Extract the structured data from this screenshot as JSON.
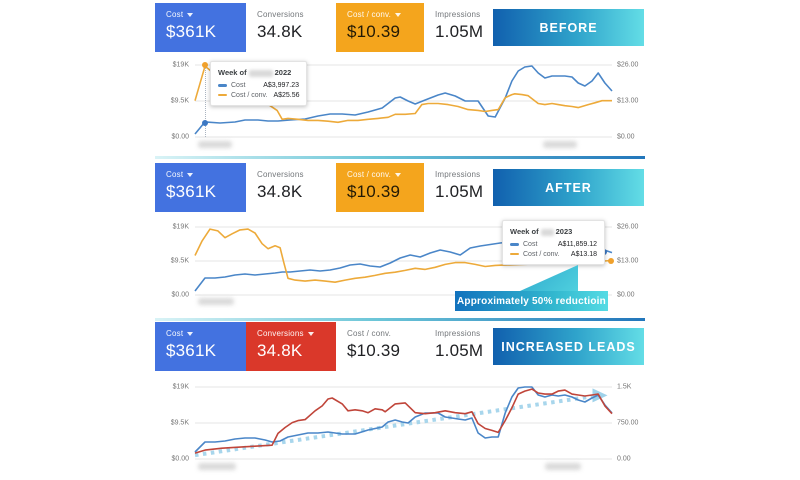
{
  "colors": {
    "cost_card_blue": "#4372e0",
    "cost_conv_card_orange": "#f4a51d",
    "conversions_card_red": "#da382a",
    "badge_gradient": [
      "#1160ae",
      "#63dde6"
    ],
    "cost_line": "#4a86c8",
    "cost_conv_line": "#edaa3a",
    "conversions_line": "#c0453a",
    "trend_line": "#9fd2ea"
  },
  "panels": [
    {
      "badge": "BEFORE",
      "cards": [
        {
          "label": "Cost",
          "caret": true,
          "value": "$361K",
          "variant": "blue"
        },
        {
          "label": "Conversions",
          "caret": false,
          "value": "34.8K",
          "variant": "white"
        },
        {
          "label": "Cost / conv.",
          "caret": true,
          "value": "$10.39",
          "variant": "orange"
        },
        {
          "label": "Impressions",
          "caret": false,
          "value": "1.05M",
          "variant": "white"
        }
      ],
      "tooltip": {
        "prefix": "Week of",
        "year": "2022",
        "rows": [
          {
            "name": "Cost",
            "value": "A$3,997.23"
          },
          {
            "name": "Cost / conv.",
            "value": "A$25.56"
          }
        ]
      }
    },
    {
      "badge": "AFTER",
      "cards": [
        {
          "label": "Cost",
          "caret": true,
          "value": "$361K",
          "variant": "blue"
        },
        {
          "label": "Conversions",
          "caret": false,
          "value": "34.8K",
          "variant": "white"
        },
        {
          "label": "Cost / conv.",
          "caret": true,
          "value": "$10.39",
          "variant": "orange"
        },
        {
          "label": "Impressions",
          "caret": false,
          "value": "1.05M",
          "variant": "white"
        }
      ],
      "tooltip": {
        "prefix": "Week of",
        "year": "2023",
        "rows": [
          {
            "name": "Cost",
            "value": "A$11,859.12"
          },
          {
            "name": "Cost / conv.",
            "value": "A$13.18"
          }
        ]
      },
      "callout": "Approximately 50% reductioin"
    },
    {
      "badge": "INCREASED LEADS",
      "cards": [
        {
          "label": "Cost",
          "caret": true,
          "value": "$361K",
          "variant": "blue"
        },
        {
          "label": "Conversions",
          "caret": true,
          "value": "34.8K",
          "variant": "red"
        },
        {
          "label": "Cost / conv.",
          "caret": false,
          "value": "$10.39",
          "variant": "white"
        },
        {
          "label": "Impressions",
          "caret": false,
          "value": "1.05M",
          "variant": "white"
        }
      ]
    }
  ],
  "chart_data": [
    {
      "type": "line",
      "title": "Before: Cost vs Cost / conv. by week (2022)",
      "x_axis": {
        "tick_labels": "redacted-blur"
      },
      "axes": {
        "left": {
          "max": 19000,
          "ticks": [
            "$19K",
            "$9.5K",
            "$0.00"
          ]
        },
        "right": {
          "max": 26,
          "ticks": [
            "$26.00",
            "$13.00",
            "$0.00"
          ]
        }
      },
      "series": [
        {
          "name": "Cost",
          "axis": "left",
          "color": "#4a86c8",
          "x": [
            0,
            0.024,
            0.06,
            0.096,
            0.12,
            0.151,
            0.175,
            0.199,
            0.228,
            0.264,
            0.295,
            0.324,
            0.353,
            0.384,
            0.415,
            0.449,
            0.48,
            0.492,
            0.511,
            0.528,
            0.552,
            0.583,
            0.6,
            0.624,
            0.648,
            0.679,
            0.703,
            0.72,
            0.744,
            0.76,
            0.775,
            0.791,
            0.808,
            0.823,
            0.839,
            0.856,
            0.887,
            0.904,
            0.919,
            0.935,
            0.952,
            0.967,
            0.983,
            1
          ],
          "values": [
            790,
            3997,
            3695,
            3959,
            4486,
            4486,
            4222,
            4222,
            4486,
            4750,
            5542,
            6070,
            6070,
            5806,
            6597,
            7653,
            10292,
            10556,
            9500,
            8709,
            9764,
            11083,
            11611,
            10819,
            9500,
            9500,
            5542,
            5278,
            10292,
            14778,
            17417,
            18472,
            18736,
            16889,
            15569,
            16097,
            16097,
            15833,
            14250,
            13458,
            14778,
            16889,
            14250,
            12139
          ]
        },
        {
          "name": "Cost / conv.",
          "axis": "right",
          "color": "#edaa3a",
          "x": [
            0,
            0.024,
            0.084,
            0.144,
            0.18,
            0.197,
            0.209,
            0.223,
            0.247,
            0.271,
            0.295,
            0.319,
            0.343,
            0.367,
            0.391,
            0.415,
            0.439,
            0.463,
            0.48,
            0.504,
            0.528,
            0.544,
            0.559,
            0.583,
            0.607,
            0.631,
            0.655,
            0.679,
            0.696,
            0.712,
            0.727,
            0.744,
            0.76,
            0.767,
            0.784,
            0.799,
            0.823,
            0.839,
            0.856,
            0.871,
            0.887,
            0.904,
            0.919,
            0.943,
            0.96,
            0.976,
            1
          ],
          "values": [
            13.1,
            25.56,
            18.4,
            13.8,
            11.3,
            9.6,
            6.4,
            6.7,
            6.4,
            6.0,
            6.0,
            5.7,
            5.3,
            6.0,
            6.0,
            6.4,
            6.7,
            7.1,
            8.2,
            8.2,
            8.5,
            11.7,
            12.1,
            12.1,
            11.7,
            11.0,
            9.9,
            9.6,
            9.2,
            9.6,
            9.9,
            14.2,
            15.3,
            15.6,
            15.3,
            14.9,
            12.1,
            11.7,
            12.1,
            11.7,
            11.3,
            11.0,
            10.6,
            11.7,
            12.4,
            13.1,
            13.1
          ]
        }
      ]
    },
    {
      "type": "line",
      "title": "After: Cost vs Cost / conv. by week (2023)",
      "x_axis": {
        "tick_labels": "redacted-blur"
      },
      "axes": {
        "left": {
          "max": 19000,
          "ticks": [
            "$19K",
            "$9.5K",
            "$0.00"
          ]
        },
        "right": {
          "max": 26,
          "ticks": [
            "$26.00",
            "$13.00",
            "$0.00"
          ]
        }
      },
      "series": [
        {
          "name": "Cost",
          "axis": "left",
          "color": "#4a86c8",
          "x": [
            0,
            0.024,
            0.048,
            0.072,
            0.096,
            0.12,
            0.144,
            0.168,
            0.192,
            0.209,
            0.228,
            0.252,
            0.276,
            0.3,
            0.324,
            0.348,
            0.372,
            0.396,
            0.42,
            0.444,
            0.468,
            0.492,
            0.516,
            0.54,
            0.564,
            0.588,
            0.612,
            0.636,
            0.66,
            0.684,
            0.732,
            0.78,
            0.828,
            0.876,
            0.924,
            0.96,
            1
          ],
          "values": [
            1118,
            4750,
            4750,
            5029,
            5588,
            5868,
            5588,
            5868,
            6147,
            6426,
            6426,
            6706,
            6985,
            6706,
            6985,
            7544,
            8382,
            8661,
            8103,
            7823,
            8941,
            10338,
            11176,
            10617,
            11735,
            12573,
            12014,
            11176,
            13132,
            13691,
            14529,
            15088,
            15367,
            15088,
            14529,
            13411,
            11859
          ]
        },
        {
          "name": "Cost / conv.",
          "axis": "right",
          "color": "#edaa3a",
          "x": [
            0,
            0.017,
            0.036,
            0.055,
            0.072,
            0.089,
            0.108,
            0.127,
            0.144,
            0.161,
            0.175,
            0.192,
            0.204,
            0.213,
            0.223,
            0.24,
            0.264,
            0.288,
            0.312,
            0.336,
            0.36,
            0.384,
            0.408,
            0.432,
            0.456,
            0.48,
            0.504,
            0.528,
            0.552,
            0.576,
            0.6,
            0.624,
            0.648,
            0.672,
            0.696,
            0.72,
            0.78,
            0.851,
            0.923,
            1
          ],
          "values": [
            15.1,
            20.7,
            25.2,
            24.5,
            21.9,
            23.4,
            24.9,
            25.2,
            23.7,
            19.6,
            17.7,
            18.8,
            18.1,
            12.4,
            6.4,
            5.7,
            5.3,
            5.7,
            5.3,
            4.9,
            5.7,
            6.4,
            6.8,
            7.5,
            8.3,
            8.7,
            9.4,
            10.2,
            9.8,
            10.6,
            11.7,
            12.4,
            12.4,
            11.7,
            10.9,
            11.3,
            11.7,
            12.1,
            12.4,
            13.18
          ]
        }
      ]
    },
    {
      "type": "line",
      "title": "Increased leads: Cost vs Conversions by week with trend",
      "x_axis": {
        "tick_labels": "redacted-blur"
      },
      "axes": {
        "left": {
          "max": 19000,
          "ticks": [
            "$19K",
            "$9.5K",
            "$0.00"
          ]
        },
        "right": {
          "max": 1500,
          "ticks": [
            "1.5K",
            "750.00",
            "0.00"
          ]
        }
      },
      "series": [
        {
          "name": "Trend",
          "axis": "left",
          "color": "#9fd2ea",
          "dashed": true,
          "width": 4,
          "arrow": true,
          "x": [
            0,
            0.97
          ],
          "values": [
            1000,
            16800
          ]
        },
        {
          "name": "Cost",
          "axis": "left",
          "color": "#4a86c8",
          "x": [
            0,
            0.024,
            0.048,
            0.072,
            0.096,
            0.12,
            0.144,
            0.168,
            0.185,
            0.204,
            0.223,
            0.247,
            0.271,
            0.295,
            0.319,
            0.336,
            0.353,
            0.384,
            0.415,
            0.449,
            0.463,
            0.48,
            0.497,
            0.511,
            0.528,
            0.552,
            0.568,
            0.583,
            0.6,
            0.616,
            0.631,
            0.648,
            0.664,
            0.679,
            0.696,
            0.712,
            0.727,
            0.744,
            0.76,
            0.775,
            0.791,
            0.808,
            0.823,
            0.839,
            0.856,
            0.871,
            0.887,
            0.904,
            0.919,
            0.935,
            0.952,
            0.967,
            0.983,
            1
          ],
          "values": [
            1847,
            4486,
            4486,
            4750,
            5278,
            5542,
            5542,
            5014,
            4486,
            4750,
            5806,
            6334,
            6861,
            6861,
            7125,
            6861,
            6597,
            6597,
            7653,
            8445,
            9764,
            10292,
            9764,
            9500,
            11083,
            12139,
            12139,
            12139,
            11083,
            10819,
            10556,
            10292,
            10819,
            6861,
            5542,
            5806,
            5806,
            12139,
            16361,
            18736,
            19000,
            19000,
            16889,
            16361,
            16889,
            16625,
            16889,
            16361,
            15569,
            15041,
            16097,
            16889,
            14250,
            12139
          ]
        },
        {
          "name": "Conversions",
          "axis": "right",
          "color": "#c0453a",
          "x": [
            0,
            0.024,
            0.065,
            0.103,
            0.144,
            0.185,
            0.199,
            0.216,
            0.233,
            0.247,
            0.264,
            0.288,
            0.305,
            0.319,
            0.329,
            0.353,
            0.367,
            0.384,
            0.401,
            0.415,
            0.432,
            0.449,
            0.456,
            0.48,
            0.504,
            0.528,
            0.552,
            0.576,
            0.6,
            0.624,
            0.648,
            0.664,
            0.679,
            0.696,
            0.712,
            0.727,
            0.744,
            0.76,
            0.775,
            0.791,
            0.808,
            0.823,
            0.839,
            0.856,
            0.871,
            0.887,
            0.904,
            0.919,
            0.935,
            0.952,
            0.967,
            0.983,
            1
          ],
          "values": [
            123,
            185,
            226,
            246,
            267,
            287,
            533,
            656,
            759,
            800,
            820,
            1005,
            1107,
            1251,
            1271,
            1148,
            1005,
            1025,
            1005,
            964,
            1046,
            1025,
            984,
            1148,
            1169,
            964,
            943,
            964,
            1005,
            964,
            943,
            984,
            738,
            636,
            595,
            554,
            800,
            1066,
            1353,
            1415,
            1456,
            1374,
            1353,
            1353,
            1415,
            1435,
            1353,
            1333,
            1312,
            1333,
            1353,
            1107,
            943
          ]
        }
      ]
    }
  ]
}
